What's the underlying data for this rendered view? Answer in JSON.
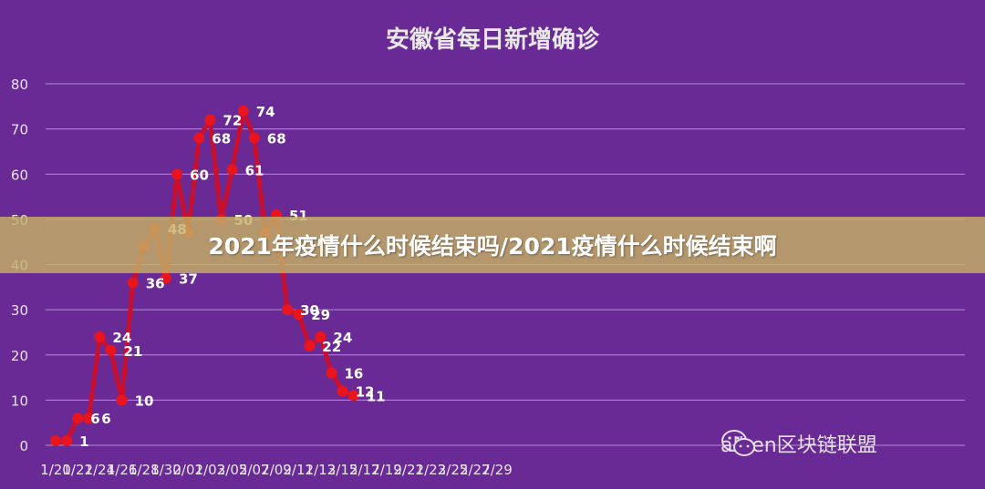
{
  "banner": {
    "title": "2021年疫情什么时候结束吗/2021疫情什么时候结束啊"
  },
  "watermark": {
    "text": "aliren区块链联盟",
    "icon": "wechat-icon"
  },
  "colors": {
    "background": "#6a2a96",
    "line": "#c8102e",
    "point": "#e8141e",
    "grid": "#b38dd0",
    "label": "#ffffff"
  },
  "chart_data": {
    "type": "line",
    "title": "安徽省每日新增确诊",
    "grid": true,
    "ylim": [
      0,
      80
    ],
    "yticks": [
      0,
      10,
      20,
      30,
      40,
      50,
      60,
      70,
      80
    ],
    "xticks": [
      "1/20",
      "1/22",
      "1/24",
      "1/26",
      "1/28",
      "1/30",
      "2/01",
      "2/03",
      "2/05",
      "2/07",
      "2/09",
      "2/11",
      "2/13",
      "2/15",
      "2/17",
      "2/19",
      "2/21",
      "2/23",
      "2/25",
      "2/27",
      "2/29"
    ],
    "x": [
      "1/20",
      "1/21",
      "1/22",
      "1/23",
      "1/24",
      "1/25",
      "1/26",
      "1/27",
      "1/28",
      "1/29",
      "1/30",
      "1/31",
      "2/01",
      "2/02",
      "2/03",
      "2/04",
      "2/05",
      "2/06",
      "2/07",
      "2/08",
      "2/09",
      "2/10",
      "2/11",
      "2/12",
      "2/13",
      "2/14",
      "2/15",
      "2/16"
    ],
    "series": [
      {
        "values": [
          1,
          1,
          6,
          6,
          24,
          21,
          10,
          36,
          44,
          48,
          37,
          60,
          47,
          68,
          72,
          50,
          61,
          74,
          68,
          47,
          51,
          30,
          29,
          22,
          24,
          16,
          12,
          11
        ]
      }
    ],
    "point_labels": [
      "",
      "1",
      "6",
      "6",
      "24",
      "21",
      "10",
      "36",
      "",
      "48",
      "37",
      "60",
      "",
      "68",
      "72",
      "50",
      "61",
      "74",
      "68",
      "",
      "51",
      "30",
      "29",
      "22",
      "24",
      "16",
      "12",
      "11"
    ]
  }
}
